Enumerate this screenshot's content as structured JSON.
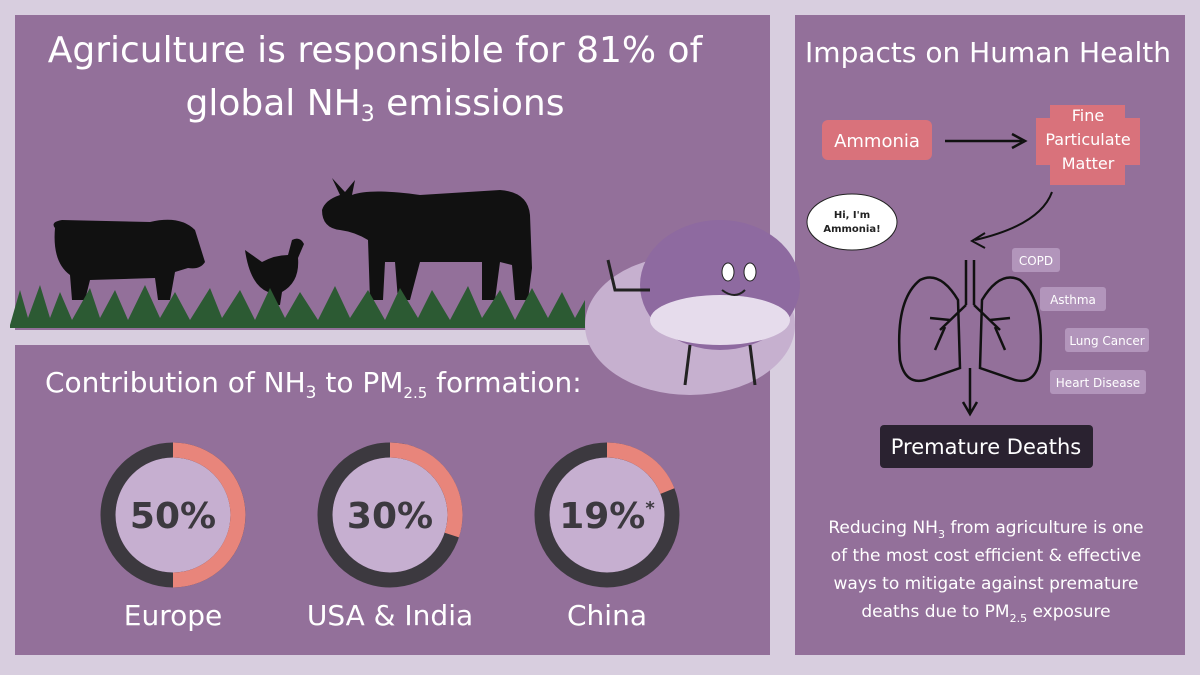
{
  "headline": {
    "line1": "Agriculture is responsible for 81% of",
    "line2": [
      "global NH",
      "3",
      " emissions"
    ]
  },
  "mascot": {
    "speech": [
      "Hi, I'm",
      "Ammonia!"
    ]
  },
  "contribution": {
    "title": [
      "Contribution of NH",
      "3",
      " to PM",
      "2.5",
      " formation:"
    ],
    "items": [
      {
        "value": 50,
        "value_label": "50%",
        "region": "Europe"
      },
      {
        "value": 30,
        "value_label": "30%",
        "region": "USA & India"
      },
      {
        "value": 19,
        "value_label": "19%",
        "note_mark": "*",
        "region": "China"
      }
    ]
  },
  "impacts": {
    "title": "Impacts on Human Health",
    "source": "Ammonia",
    "product": [
      "Fine",
      "Particulate",
      "Matter"
    ],
    "conditions": [
      "COPD",
      "Asthma",
      "Lung Cancer",
      "Heart Disease"
    ],
    "outcome": "Premature Deaths",
    "summary": [
      [
        "Reducing NH",
        "3",
        " from agriculture is one"
      ],
      [
        "of the most cost efficient & effective"
      ],
      [
        "ways to mitigate against premature"
      ],
      [
        "deaths due to PM",
        "2.5",
        " exposure"
      ]
    ]
  }
}
